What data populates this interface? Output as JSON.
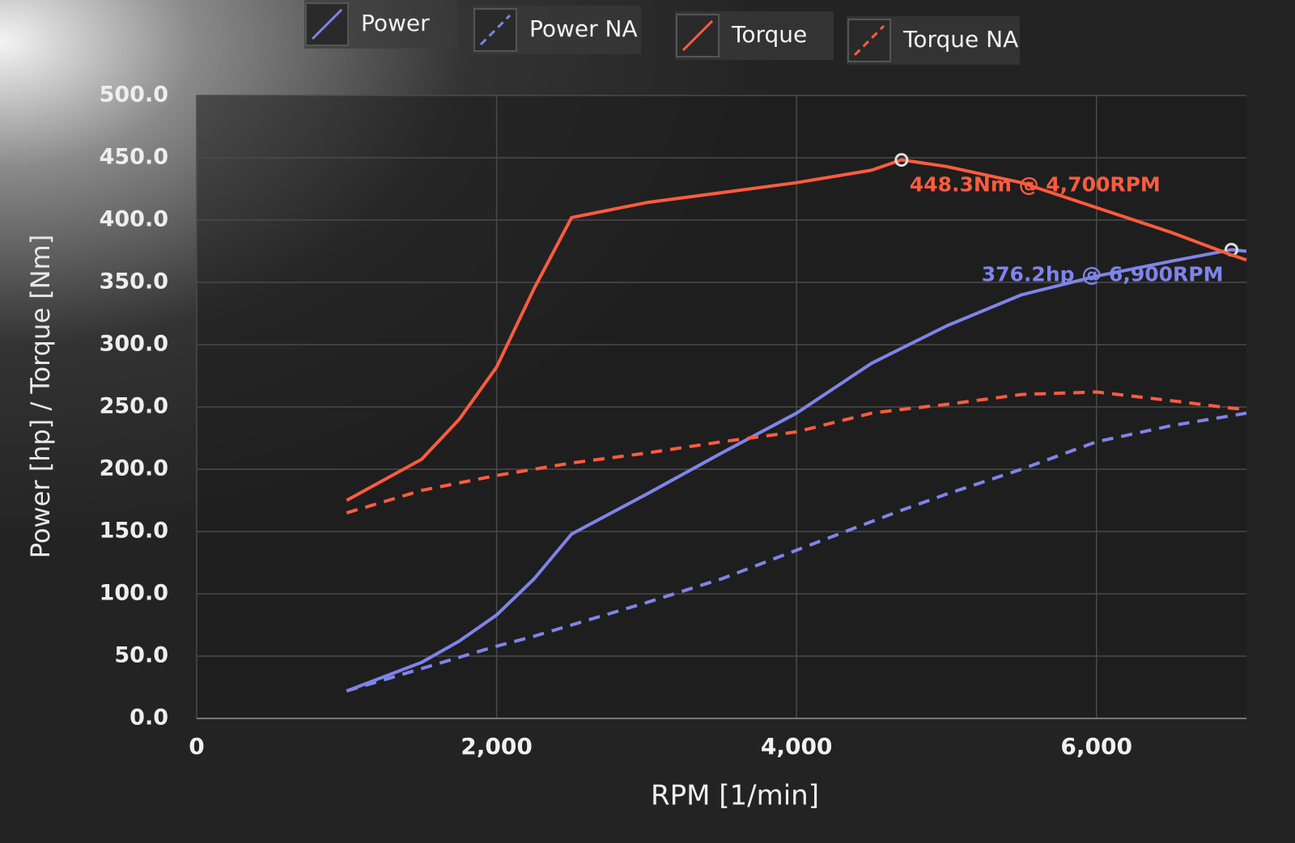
{
  "chart_data": {
    "type": "line",
    "xlabel": "RPM [1/min]",
    "ylabel": "Power [hp] / Torque [Nm]",
    "x": [
      1000,
      1500,
      1750,
      2000,
      2250,
      2500,
      3000,
      3500,
      4000,
      4500,
      4700,
      5000,
      5500,
      6000,
      6500,
      6900,
      7000
    ],
    "series": [
      {
        "name": "Power",
        "color": "#7f84ea",
        "dash": false,
        "annotation": "376.2hp @ 6,900RPM",
        "values": [
          22,
          45,
          62,
          83,
          112,
          148,
          180,
          213,
          245,
          285,
          297,
          315,
          340,
          355,
          367,
          376.2,
          375
        ]
      },
      {
        "name": "Power NA",
        "color": "#7f84ea",
        "dash": true,
        "values": [
          22,
          40,
          49,
          58,
          66,
          75,
          93,
          112,
          135,
          158,
          167,
          180,
          200,
          222,
          235,
          243,
          245
        ]
      },
      {
        "name": "Torque",
        "color": "#ff5b3f",
        "dash": false,
        "annotation": "448.3Nm @ 4,700RPM",
        "values": [
          175,
          208,
          240,
          282,
          345,
          402,
          414,
          422,
          430,
          440,
          448.3,
          443,
          430,
          410,
          390,
          372,
          368
        ]
      },
      {
        "name": "Torque NA",
        "color": "#ff5b3f",
        "dash": true,
        "values": [
          165,
          183,
          189,
          195,
          200,
          205,
          213,
          222,
          230,
          245,
          248,
          252,
          260,
          262,
          255,
          249,
          248
        ]
      }
    ],
    "xlim": [
      0,
      7000
    ],
    "xticks": [
      0,
      {
        "value": 2000,
        "label": "2,000"
      },
      {
        "value": 4000,
        "label": "4,000"
      },
      {
        "value": 6000,
        "label": "6,000"
      }
    ],
    "ylim": [
      0,
      500
    ],
    "yticks": [
      {
        "value": 0,
        "label": "0.0"
      },
      {
        "value": 50,
        "label": "50.0"
      },
      {
        "value": 100,
        "label": "100.0"
      },
      {
        "value": 150,
        "label": "150.0"
      },
      {
        "value": 200,
        "label": "200.0"
      },
      {
        "value": 250,
        "label": "250.0"
      },
      {
        "value": 300,
        "label": "300.0"
      },
      {
        "value": 350,
        "label": "350.0"
      },
      {
        "value": 400,
        "label": "400.0"
      },
      {
        "value": 450,
        "label": "450.0"
      },
      {
        "value": 500,
        "label": "500.0"
      }
    ],
    "grid": true,
    "legend": "top"
  }
}
